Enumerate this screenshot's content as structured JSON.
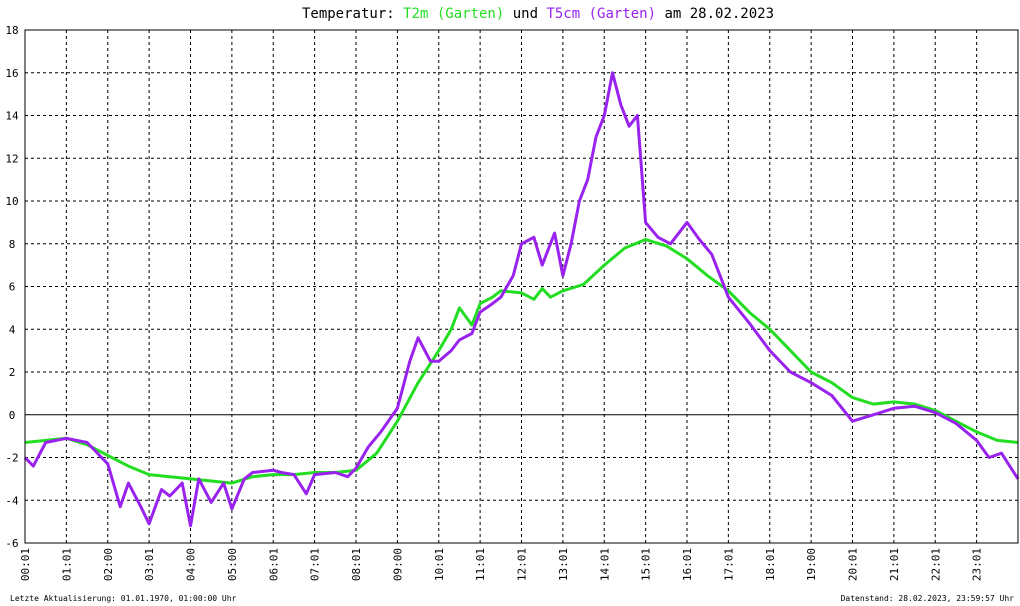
{
  "chart_data": {
    "type": "line",
    "title": {
      "prefix": "Temperatur: ",
      "series1": "T2m (Garten)",
      "middle": " und ",
      "series2": "T5cm (Garten)",
      "suffix": " am 28.02.2023"
    },
    "xlabel": "",
    "ylabel": "",
    "ylim": [
      -6,
      18
    ],
    "y_ticks": [
      "18",
      "16",
      "14",
      "12",
      "10",
      "8",
      "6",
      "4",
      "2",
      "0",
      "-2",
      "-4",
      "-6"
    ],
    "x_tick_labels": [
      "00:01",
      "01:01",
      "02:00",
      "03:01",
      "04:00",
      "05:00",
      "06:01",
      "07:01",
      "08:01",
      "09:00",
      "10:01",
      "11:01",
      "12:01",
      "13:01",
      "14:01",
      "15:01",
      "16:01",
      "17:01",
      "18:01",
      "19:00",
      "20:01",
      "21:01",
      "22:01",
      "23:01"
    ],
    "grid": true,
    "colors": {
      "T2m": "#22dd22",
      "T5cm": "#9922ee",
      "grid": "#000000",
      "zero_line": "#000000"
    },
    "series": [
      {
        "name": "T2m (Garten)",
        "x_hours": [
          0,
          0.5,
          1,
          1.5,
          2,
          2.5,
          3,
          3.5,
          4,
          4.5,
          5,
          5.5,
          6,
          6.5,
          7,
          7.5,
          8,
          8.5,
          9,
          9.5,
          10,
          10.3,
          10.5,
          10.8,
          11,
          11.3,
          11.5,
          12,
          12.3,
          12.5,
          12.7,
          13,
          13.5,
          14,
          14.5,
          15,
          15.5,
          16,
          16.5,
          17,
          17.5,
          18,
          18.5,
          19,
          19.5,
          20,
          20.5,
          21,
          21.5,
          22,
          22.5,
          23,
          23.5,
          24
        ],
        "values": [
          -1.3,
          -1.2,
          -1.1,
          -1.4,
          -1.9,
          -2.4,
          -2.8,
          -2.9,
          -3.0,
          -3.1,
          -3.2,
          -2.9,
          -2.8,
          -2.8,
          -2.7,
          -2.7,
          -2.6,
          -1.8,
          -0.3,
          1.5,
          3.0,
          4.0,
          5.0,
          4.2,
          5.2,
          5.5,
          5.8,
          5.7,
          5.4,
          5.9,
          5.5,
          5.8,
          6.1,
          7.0,
          7.8,
          8.2,
          7.9,
          7.3,
          6.5,
          5.8,
          4.8,
          4.0,
          3.0,
          2.0,
          1.5,
          0.8,
          0.5,
          0.6,
          0.5,
          0.2,
          -0.3,
          -0.8,
          -1.2,
          -1.3
        ]
      },
      {
        "name": "T5cm (Garten)",
        "x_hours": [
          0,
          0.2,
          0.5,
          1,
          1.5,
          2,
          2.3,
          2.5,
          2.8,
          3,
          3.3,
          3.5,
          3.8,
          4,
          4.2,
          4.5,
          4.8,
          5,
          5.3,
          5.5,
          6,
          6.2,
          6.5,
          6.8,
          7,
          7.5,
          7.8,
          8,
          8.3,
          8.6,
          9,
          9.3,
          9.5,
          9.8,
          10,
          10.3,
          10.5,
          10.8,
          11,
          11.3,
          11.5,
          11.8,
          12,
          12.3,
          12.5,
          12.8,
          13,
          13.2,
          13.4,
          13.6,
          13.8,
          14,
          14.2,
          14.4,
          14.6,
          14.8,
          15,
          15.3,
          15.6,
          16,
          16.3,
          16.6,
          17,
          17.5,
          18,
          18.5,
          19,
          19.5,
          20,
          20.5,
          21,
          21.5,
          22,
          22.5,
          23,
          23.3,
          23.6,
          24
        ],
        "values": [
          -2.0,
          -2.4,
          -1.3,
          -1.1,
          -1.3,
          -2.3,
          -4.3,
          -3.2,
          -4.3,
          -5.1,
          -3.5,
          -3.8,
          -3.2,
          -5.2,
          -3.0,
          -4.1,
          -3.2,
          -4.4,
          -3.0,
          -2.7,
          -2.6,
          -2.7,
          -2.8,
          -3.7,
          -2.8,
          -2.7,
          -2.9,
          -2.5,
          -1.5,
          -0.8,
          0.3,
          2.5,
          3.6,
          2.5,
          2.5,
          3.0,
          3.5,
          3.8,
          4.8,
          5.2,
          5.5,
          6.5,
          8.0,
          8.3,
          7.0,
          8.5,
          6.5,
          8.0,
          10.0,
          11.0,
          13.0,
          14.0,
          16.0,
          14.5,
          13.5,
          14.0,
          9.0,
          8.3,
          8.0,
          9.0,
          8.2,
          7.5,
          5.5,
          4.3,
          3.0,
          2.0,
          1.5,
          0.9,
          -0.3,
          0.0,
          0.3,
          0.4,
          0.1,
          -0.4,
          -1.2,
          -2.0,
          -1.8,
          -3.0
        ]
      }
    ],
    "footer_left": "Letzte Aktualisierung: 01.01.1970, 01:00:00 Uhr",
    "footer_right": "Datenstand: 28.02.2023, 23:59:57 Uhr"
  }
}
